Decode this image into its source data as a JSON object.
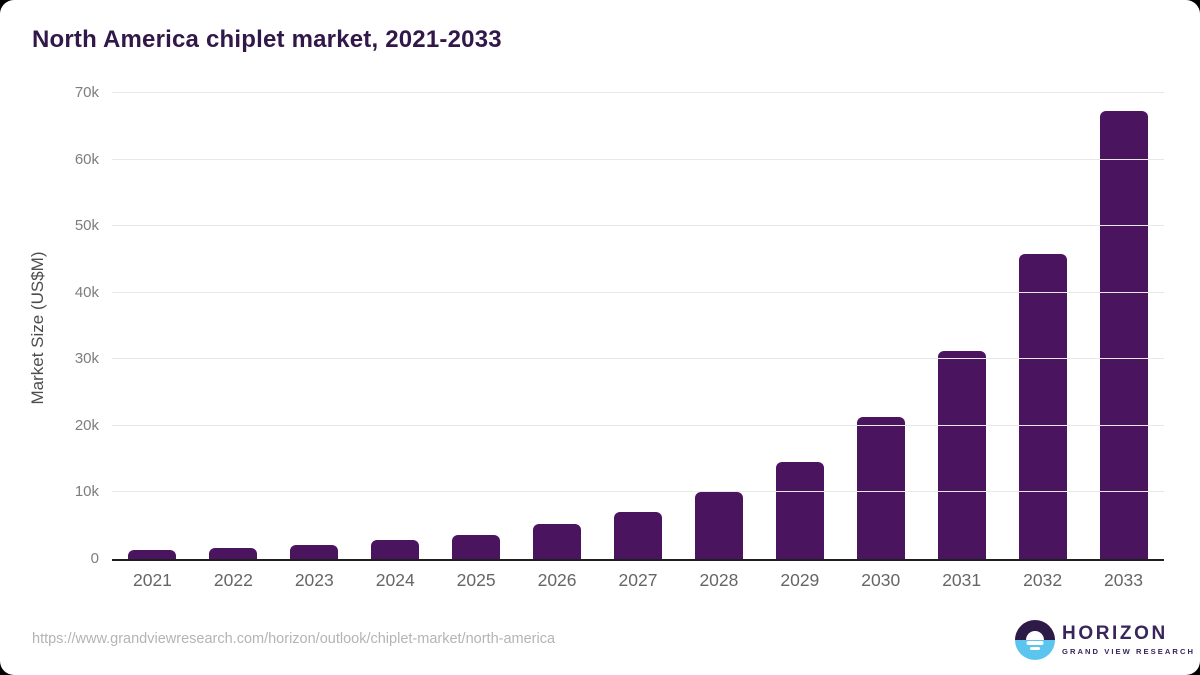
{
  "title": "North America chiplet market, 2021-2033",
  "chart_data": {
    "type": "bar",
    "categories": [
      "2021",
      "2022",
      "2023",
      "2024",
      "2025",
      "2026",
      "2027",
      "2028",
      "2029",
      "2030",
      "2031",
      "2032",
      "2033"
    ],
    "values": [
      1400,
      1650,
      2150,
      2800,
      3650,
      5200,
      7050,
      10100,
      14600,
      21300,
      31200,
      45800,
      67300
    ],
    "title": "North America chiplet market, 2021-2033",
    "xlabel": "",
    "ylabel": "Market Size (US$M)",
    "ylim": [
      0,
      70000
    ],
    "yticks": [
      {
        "label": "0",
        "value": 0
      },
      {
        "label": "10k",
        "value": 10000
      },
      {
        "label": "20k",
        "value": 20000
      },
      {
        "label": "30k",
        "value": 30000
      },
      {
        "label": "40k",
        "value": 40000
      },
      {
        "label": "50k",
        "value": 50000
      },
      {
        "label": "60k",
        "value": 60000
      },
      {
        "label": "70k",
        "value": 70000
      }
    ],
    "grid": true,
    "legend": false
  },
  "footer": {
    "source_url": "https://www.grandviewresearch.com/horizon/outlook/chiplet-market/north-america",
    "logo": {
      "name": "HORIZON",
      "subtitle": "GRAND VIEW RESEARCH"
    }
  },
  "colors": {
    "bar": "#4a145e",
    "title": "#321849",
    "axis_line": "#1f1f1f",
    "gridline": "#e8e8e8",
    "y_tick_text": "#7d7d7d",
    "x_tick_text": "#666666",
    "url_text": "#b4b4b4",
    "logo_purple": "#2e1a47",
    "logo_blue": "#5bc5f0",
    "logo_text": "#38255c"
  }
}
